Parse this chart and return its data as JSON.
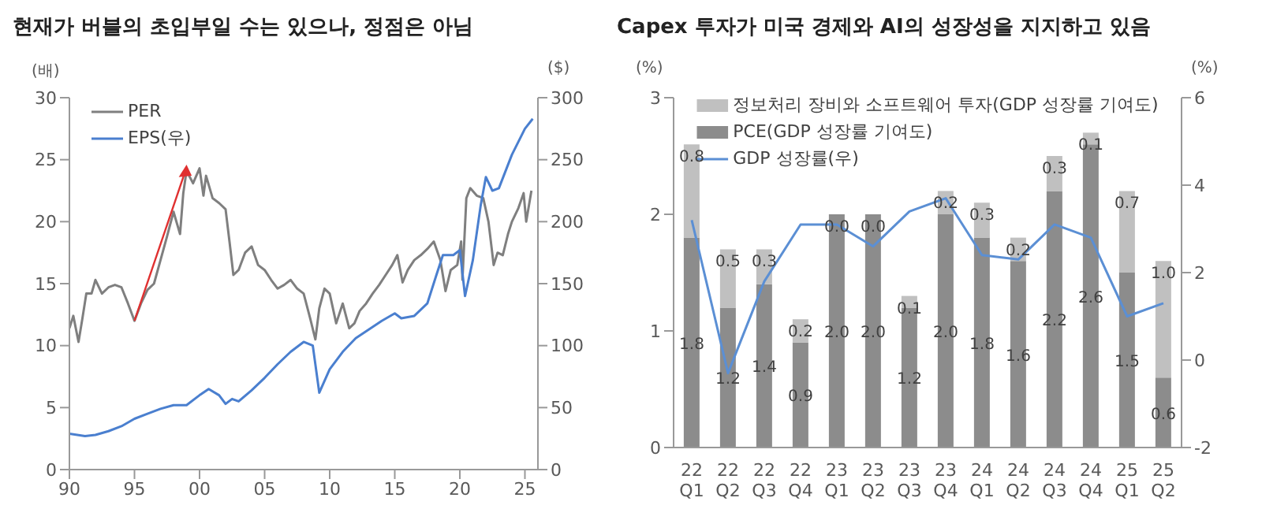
{
  "chart_data": [
    {
      "type": "line",
      "title": "현재가 버블의 초입부일 수는 있으나, 정점은 아님",
      "ylabel": "(배)",
      "y2label": "($)",
      "xlim": [
        1990,
        2026
      ],
      "xticks": [
        {
          "value": 1990,
          "label": "90"
        },
        {
          "value": 1995,
          "label": "95"
        },
        {
          "value": 2000,
          "label": "00"
        },
        {
          "value": 2005,
          "label": "05"
        },
        {
          "value": 2010,
          "label": "10"
        },
        {
          "value": 2015,
          "label": "15"
        },
        {
          "value": 2020,
          "label": "20"
        },
        {
          "value": 2025,
          "label": "25"
        }
      ],
      "ylim": [
        0,
        30
      ],
      "yticks": [
        0,
        5,
        10,
        15,
        20,
        25,
        30
      ],
      "y2lim": [
        0,
        300
      ],
      "y2ticks": [
        0,
        50,
        100,
        150,
        200,
        250,
        300
      ],
      "legend": "top left",
      "marker": "none",
      "line_style": "solid",
      "series": [
        {
          "name": "PER",
          "color": "#7f7f7f",
          "x": [
            1990,
            1990.3,
            1990.7,
            1991,
            1991.3,
            1991.7,
            1992,
            1992.5,
            1993,
            1993.5,
            1994,
            1994.5,
            1995,
            1995.5,
            1996,
            1996.5,
            1997,
            1997.5,
            1998,
            1998.5,
            1998.75,
            1999,
            1999.5,
            2000,
            2000.3,
            2000.5,
            2001,
            2001.5,
            2002,
            2002.3,
            2002.6,
            2003,
            2003.5,
            2004,
            2004.5,
            2005,
            2005.5,
            2006,
            2006.5,
            2007,
            2007.5,
            2008,
            2008.5,
            2008.9,
            2009.2,
            2009.6,
            2010,
            2010.5,
            2011,
            2011.5,
            2011.9,
            2012.3,
            2012.8,
            2013.3,
            2013.8,
            2014.3,
            2014.8,
            2015.2,
            2015.6,
            2016,
            2016.5,
            2017,
            2017.5,
            2018,
            2018.5,
            2018.9,
            2019.3,
            2019.8,
            2020.1,
            2020.2,
            2020.5,
            2020.8,
            2021.3,
            2021.8,
            2022.2,
            2022.6,
            2022.9,
            2023.3,
            2023.7,
            2024,
            2024.5,
            2024.9,
            2025.1,
            2025.5
          ],
          "values": [
            11.4,
            12.4,
            10.3,
            12.2,
            14.2,
            14.2,
            15.3,
            14.2,
            14.7,
            14.9,
            14.7,
            13.4,
            12.0,
            13.4,
            14.5,
            15.0,
            16.9,
            18.8,
            20.8,
            19.0,
            22.3,
            24.1,
            23.1,
            24.3,
            22.1,
            23.7,
            21.9,
            21.5,
            21.0,
            18.4,
            15.7,
            16.1,
            17.5,
            18.0,
            16.5,
            16.1,
            15.3,
            14.6,
            14.9,
            15.3,
            14.6,
            14.2,
            12.2,
            10.5,
            13.0,
            14.6,
            14.2,
            11.8,
            13.4,
            11.4,
            11.8,
            12.8,
            13.4,
            14.2,
            14.9,
            15.7,
            16.5,
            17.3,
            15.1,
            16.1,
            16.9,
            17.3,
            17.8,
            18.4,
            16.9,
            14.4,
            16.1,
            16.5,
            18.4,
            15.3,
            21.9,
            22.7,
            22.1,
            21.9,
            20.0,
            16.5,
            17.5,
            17.3,
            19.0,
            20.0,
            21.1,
            22.3,
            20.0,
            22.5
          ]
        },
        {
          "name": "EPS(우)",
          "color": "#4a7fcf",
          "axis": "y2",
          "x": [
            1990,
            1991.2,
            1992,
            1993,
            1994,
            1995,
            1996,
            1997,
            1998,
            1999,
            2000,
            2000.7,
            2001.5,
            2002,
            2002.5,
            2003,
            2004,
            2005,
            2006,
            2007,
            2008,
            2008.7,
            2009.2,
            2010,
            2011,
            2012,
            2013,
            2014,
            2015,
            2015.5,
            2016.5,
            2017.5,
            2018.2,
            2018.7,
            2019.5,
            2020,
            2020.4,
            2021,
            2021.6,
            2022,
            2022.5,
            2023,
            2024,
            2025,
            2025.6
          ],
          "values": [
            29,
            27,
            28,
            31,
            35,
            41,
            45,
            49,
            52,
            52,
            60,
            65,
            60,
            53,
            57,
            55,
            64,
            74,
            85,
            95,
            103,
            100,
            62,
            81,
            95,
            106,
            113,
            120,
            126,
            122,
            124,
            134,
            157,
            173,
            173,
            177,
            140,
            169,
            213,
            236,
            225,
            227,
            254,
            275,
            283
          ]
        }
      ]
    },
    {
      "type": "bar",
      "title": "Capex 투자가 미국 경제와 AI의 성장성을 지지하고 있음",
      "ylabel": "(%)",
      "y2label": "(%)",
      "categories": [
        "22 Q1",
        "22 Q2",
        "22 Q3",
        "22 Q4",
        "23 Q1",
        "23 Q2",
        "23 Q3",
        "23 Q4",
        "24 Q1",
        "24 Q2",
        "24 Q3",
        "24 Q4",
        "25 Q1",
        "25 Q2"
      ],
      "stacked": true,
      "ylim": [
        0,
        3
      ],
      "yticks": [
        0,
        1,
        2,
        3
      ],
      "y2lim": [
        -2,
        6
      ],
      "y2ticks": [
        -2,
        0,
        2,
        4,
        6
      ],
      "legend": "top",
      "marker": "none",
      "series": [
        {
          "name": "PCE(GDP 성장률 기여도)",
          "color": "#8c8c8c",
          "values": [
            1.8,
            1.2,
            1.4,
            0.9,
            2.0,
            2.0,
            1.2,
            2.0,
            1.8,
            1.6,
            2.2,
            2.6,
            1.5,
            0.6
          ],
          "value_labels": [
            "1.8",
            "1.2",
            "1.4",
            "0.9",
            "2.0",
            "2.0",
            "1.2",
            "2.0",
            "1.8",
            "1.6",
            "2.2",
            "2.6",
            "1.5",
            "0.6"
          ]
        },
        {
          "name": "정보처리 장비와 소프트웨어 투자(GDP 성장률 기여도)",
          "color": "#c0c0c0",
          "values": [
            0.8,
            0.5,
            0.3,
            0.2,
            0.0,
            0.0,
            0.1,
            0.2,
            0.3,
            0.2,
            0.3,
            0.1,
            0.7,
            1.0
          ],
          "value_labels": [
            "0.8",
            "0.5",
            "0.3",
            "0.2",
            "0.0",
            "0.0",
            "0.1",
            "0.2",
            "0.3",
            "0.2",
            "0.3",
            "0.1",
            "0.7",
            "1.0"
          ]
        },
        {
          "name": "GDP 성장률(우)",
          "type": "line",
          "color": "#5b8fd4",
          "axis": "y2",
          "values": [
            3.2,
            -0.3,
            1.8,
            3.1,
            3.1,
            2.6,
            3.4,
            3.7,
            2.4,
            2.3,
            3.1,
            2.8,
            1.0,
            1.3
          ]
        }
      ]
    }
  ]
}
